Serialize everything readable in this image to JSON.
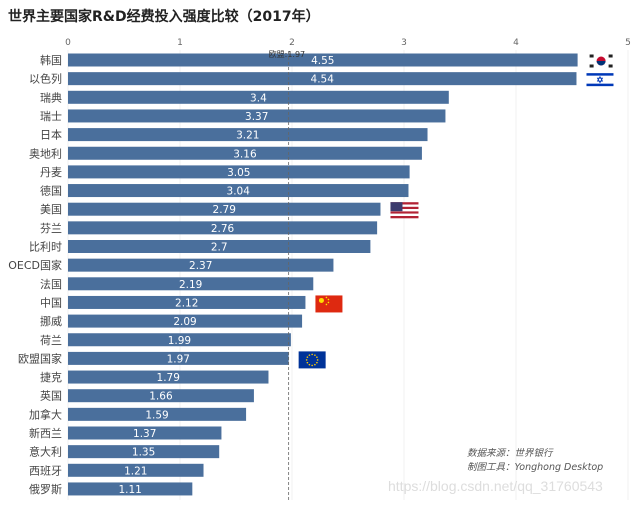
{
  "chart_data": {
    "type": "bar",
    "orientation": "horizontal",
    "title": "世界主要国家R&D经费投入强度比较（2017年）",
    "categories": [
      "韩国",
      "以色列",
      "瑞典",
      "瑞士",
      "日本",
      "奥地利",
      "丹麦",
      "德国",
      "美国",
      "芬兰",
      "比利时",
      "OECD国家",
      "法国",
      "中国",
      "挪威",
      "荷兰",
      "欧盟国家",
      "捷克",
      "英国",
      "加拿大",
      "新西兰",
      "意大利",
      "西班牙",
      "俄罗斯"
    ],
    "values": [
      4.55,
      4.54,
      3.4,
      3.37,
      3.21,
      3.16,
      3.05,
      3.04,
      2.79,
      2.76,
      2.7,
      2.37,
      2.19,
      2.12,
      2.09,
      1.99,
      1.97,
      1.79,
      1.66,
      1.59,
      1.37,
      1.35,
      1.21,
      1.11
    ],
    "xlim": [
      0,
      5
    ],
    "xticks": [
      0,
      1,
      2,
      3,
      4,
      5
    ],
    "reference_line": {
      "label": "欧盟:1.97",
      "value": 1.97,
      "style": "dashed"
    },
    "bar_color": "#4a6f9c",
    "flags": {
      "韩国": "south-korea-flag",
      "以色列": "israel-flag",
      "美国": "usa-flag",
      "中国": "china-flag",
      "欧盟国家": "eu-flag"
    },
    "legend": "none"
  },
  "notes": {
    "source": "数据来源：世界银行",
    "tool": "制图工具：Yonghong Desktop"
  },
  "watermark": "https://blog.csdn.net/qq_31760543"
}
